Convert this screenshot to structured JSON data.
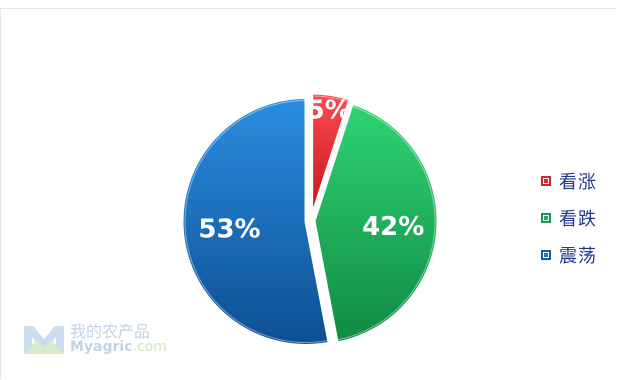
{
  "chart_data": {
    "type": "pie",
    "slices": [
      {
        "label": "看涨",
        "value": 5,
        "value_label": "5%",
        "color": "#e8282e"
      },
      {
        "label": "看跌",
        "value": 42,
        "value_label": "42%",
        "color": "#1fb45f"
      },
      {
        "label": "震荡",
        "value": 53,
        "value_label": "53%",
        "color": "#1a73c4"
      }
    ],
    "legend_placement": "right",
    "start_angle_deg": 0,
    "direction": "clockwise"
  },
  "watermark": {
    "cn": "我的农产品",
    "en_main": "Myagric",
    "en_suffix": ".com"
  }
}
